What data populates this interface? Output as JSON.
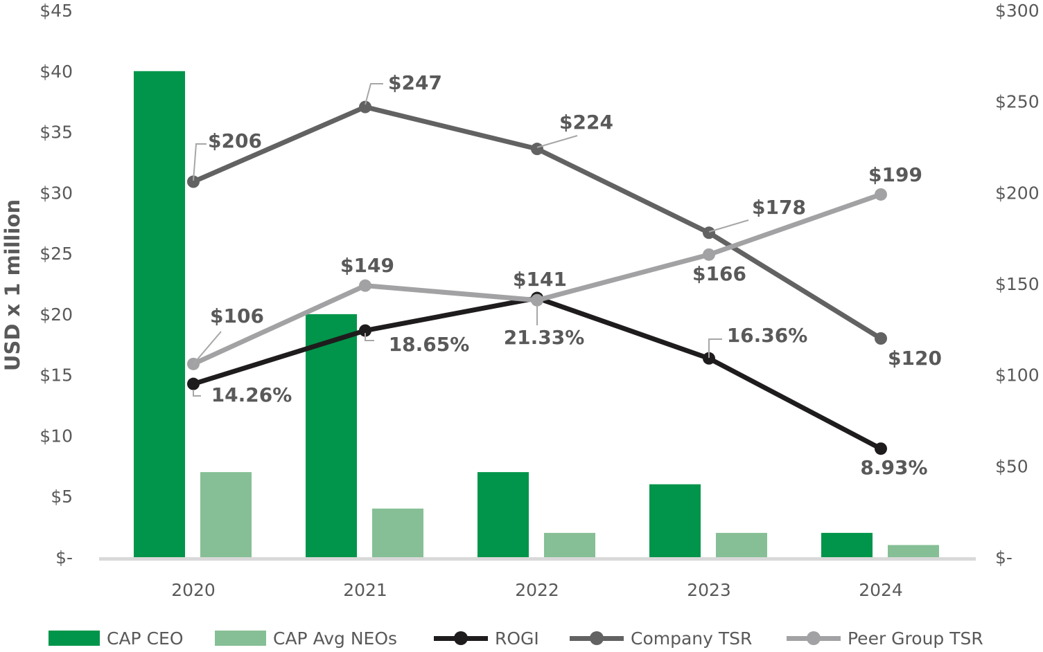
{
  "chart_data": {
    "type": "bar",
    "categories": [
      "2020",
      "2021",
      "2022",
      "2023",
      "2024"
    ],
    "ylabel": "USD x 1 million",
    "y_left": {
      "ticks": [
        "$-",
        "$5",
        "$10",
        "$15",
        "$20",
        "$25",
        "$30",
        "$35",
        "$40",
        "$45"
      ],
      "range": [
        0,
        45
      ]
    },
    "y_right": {
      "ticks": [
        "$-",
        "$50",
        "$100",
        "$150",
        "$200",
        "$250",
        "$300"
      ],
      "range": [
        0,
        300
      ]
    },
    "bars": [
      {
        "name": "CAP CEO",
        "color": "#00954a",
        "values": [
          40,
          20,
          7,
          6,
          2
        ]
      },
      {
        "name": "CAP Avg NEOs",
        "color": "#86bf95",
        "values": [
          7,
          4,
          2,
          2,
          1
        ]
      }
    ],
    "lines": [
      {
        "name": "ROGI",
        "color": "#1f1c1d",
        "values": [
          14.26,
          18.65,
          21.33,
          16.36,
          8.93
        ],
        "labels": [
          "14.26%",
          "18.65%",
          "21.33%",
          "16.36%",
          "8.93%"
        ]
      },
      {
        "name": "Company TSR",
        "color": "#626262",
        "values": [
          206,
          247,
          224,
          178,
          120
        ],
        "labels": [
          "$206",
          "$247",
          "$224",
          "$178",
          "$120"
        ]
      },
      {
        "name": "Peer Group TSR",
        "color": "#a2a2a4",
        "values": [
          106,
          149,
          141,
          166,
          199
        ],
        "labels": [
          "$106",
          "$149",
          "$141",
          "$166",
          "$199"
        ]
      }
    ],
    "grid": false,
    "legend_position": "bottom"
  }
}
